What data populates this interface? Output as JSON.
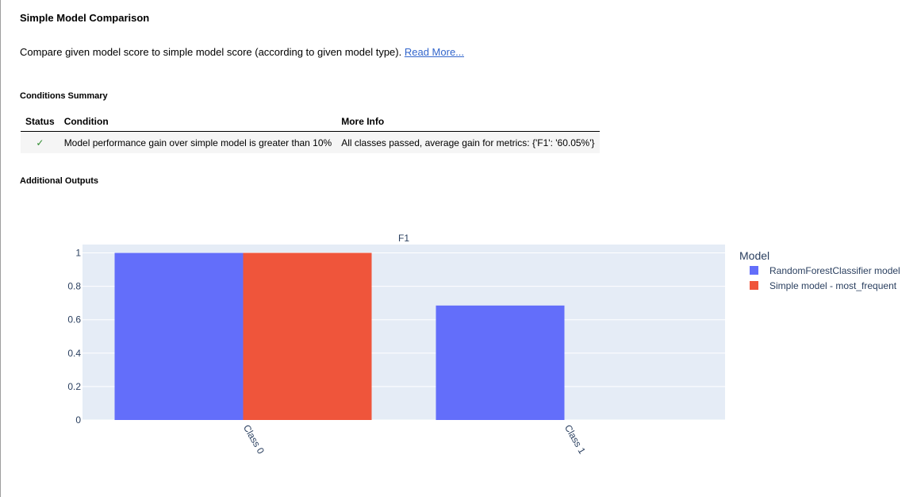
{
  "header": {
    "title": "Simple Model Comparison",
    "description": "Compare given model score to simple model score (according to given model type).",
    "read_more": "Read More..."
  },
  "conditions": {
    "heading": "Conditions Summary",
    "columns": {
      "status": "Status",
      "condition": "Condition",
      "more_info": "More Info"
    },
    "rows": [
      {
        "status": "✓",
        "condition": "Model performance gain over simple model is greater than 10%",
        "more_info": "All classes passed, average gain for metrics: {'F1': '60.05%'}"
      }
    ]
  },
  "additional_outputs": {
    "heading": "Additional Outputs"
  },
  "chart_data": {
    "type": "bar",
    "title": "F1",
    "categories": [
      "Class 0",
      "Class 1"
    ],
    "series": [
      {
        "name": "RandomForestClassifier model",
        "values": [
          1.0,
          0.685
        ],
        "color": "#636efa"
      },
      {
        "name": "Simple model - most_frequent",
        "values": [
          1.0,
          0
        ],
        "color": "#ef553b"
      }
    ],
    "ylim": [
      0,
      1.05
    ],
    "yticks": [
      0,
      0.2,
      0.4,
      0.6,
      0.8,
      1
    ],
    "ytick_labels": [
      "0",
      "0.2",
      "0.4",
      "0.6",
      "0.8",
      "1"
    ],
    "legend_title": "Model",
    "legend_position": "right",
    "grid": true,
    "plot_background": "#e5ecf6"
  }
}
